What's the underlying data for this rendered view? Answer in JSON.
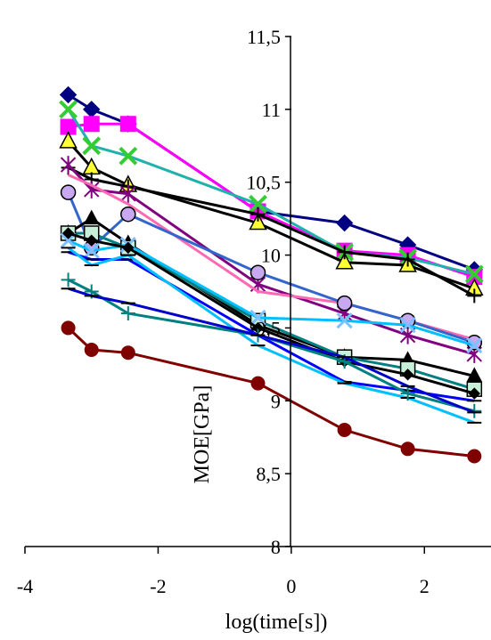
{
  "chart_data": {
    "type": "line",
    "title": "",
    "xlabel": "log(time[s])",
    "ylabel": "MOE[GPa]",
    "xlim": [
      -4,
      3
    ],
    "ylim": [
      8,
      11.5
    ],
    "x_ticks": [
      "-4",
      "-2",
      "0",
      "2"
    ],
    "x_tick_values": [
      -4,
      -2,
      0,
      2
    ],
    "y_ticks": [
      "8",
      "8,5",
      "9",
      "9,5",
      "10",
      "10,5",
      "11",
      "11,5"
    ],
    "y_tick_values": [
      8,
      8.5,
      9,
      9.5,
      10,
      10.5,
      11,
      11.5
    ],
    "grid": false,
    "legend": "none",
    "series": [
      {
        "color": "#000080",
        "marker": "diamond",
        "x": [
          -3.35,
          -3.0,
          -2.45,
          -0.5,
          0.8,
          1.75,
          2.75
        ],
        "y": [
          11.1,
          11.0,
          10.9,
          10.3,
          10.22,
          10.07,
          9.9
        ]
      },
      {
        "color": "#ff00ff",
        "marker": "square",
        "x": [
          -3.35,
          -3.0,
          -2.45,
          -0.5,
          0.8,
          1.75,
          2.75
        ],
        "y": [
          10.88,
          10.9,
          10.9,
          10.3,
          10.03,
          10.0,
          9.85
        ]
      },
      {
        "color": "#20b2aa",
        "marker": "x",
        "x": [
          -3.35,
          -3.0,
          -2.45,
          -0.5,
          0.8,
          1.75,
          2.75
        ],
        "y": [
          11.0,
          10.75,
          10.68,
          10.35,
          10.02,
          9.98,
          9.87
        ]
      },
      {
        "color": "#000000",
        "marker": "triangle-yellow",
        "x": [
          -3.35,
          -3.0,
          -2.45,
          -0.5,
          0.8,
          1.75,
          2.75
        ],
        "y": [
          10.78,
          10.6,
          10.48,
          10.22,
          9.95,
          9.93,
          9.77
        ]
      },
      {
        "color": "#000000",
        "marker": "plus",
        "x": [
          -3.35,
          -3.0,
          -2.45,
          -0.5,
          0.8,
          1.75,
          2.75
        ],
        "y": [
          10.6,
          10.52,
          10.47,
          10.28,
          10.02,
          9.97,
          9.72
        ]
      },
      {
        "color": "#800080",
        "marker": "star",
        "x": [
          -3.35,
          -3.0,
          -2.45,
          -0.5,
          0.8,
          1.75,
          2.75
        ],
        "y": [
          10.62,
          10.45,
          10.42,
          9.8,
          9.6,
          9.45,
          9.32
        ]
      },
      {
        "color": "#ff69b4",
        "marker": "none",
        "x": [
          -3.35,
          -3.0,
          -2.45,
          -0.5,
          0.8,
          1.75,
          2.75
        ],
        "y": [
          10.55,
          10.48,
          10.35,
          9.75,
          9.67,
          9.55,
          9.42
        ]
      },
      {
        "color": "#3366cc",
        "marker": "circle-lavender",
        "x": [
          -3.35,
          -3.0,
          -2.45,
          -0.5,
          0.8,
          1.75,
          2.75
        ],
        "y": [
          10.43,
          10.05,
          10.28,
          9.88,
          9.67,
          9.55,
          9.4
        ]
      },
      {
        "color": "#000000",
        "marker": "triangle-black",
        "x": [
          -3.35,
          -3.0,
          -2.45,
          -0.5,
          0.8,
          1.75,
          2.75
        ],
        "y": [
          10.15,
          10.25,
          10.08,
          9.52,
          9.3,
          9.28,
          9.17
        ]
      },
      {
        "color": "#008080",
        "marker": "square-green",
        "x": [
          -3.35,
          -3.0,
          -2.45,
          -0.5,
          0.8,
          1.75,
          2.75
        ],
        "y": [
          10.15,
          10.15,
          10.05,
          9.55,
          9.3,
          9.22,
          9.08
        ]
      },
      {
        "color": "#00bfff",
        "marker": "x-blue",
        "x": [
          -3.35,
          -3.0,
          -2.45,
          -0.5,
          0.8,
          1.75,
          2.75
        ],
        "y": [
          10.1,
          10.03,
          10.07,
          9.57,
          9.55,
          9.52,
          9.38
        ]
      },
      {
        "color": "#000000",
        "marker": "diamond-small",
        "x": [
          -3.35,
          -3.0,
          -2.45,
          -0.5,
          0.8,
          1.75,
          2.75
        ],
        "y": [
          10.15,
          10.1,
          10.05,
          9.5,
          9.27,
          9.18,
          9.05
        ]
      },
      {
        "color": "#0000ff",
        "marker": "dash",
        "x": [
          -3.35,
          -3.0,
          -2.45,
          -0.5,
          0.8,
          1.75,
          2.75
        ],
        "y": [
          10.02,
          9.97,
          9.97,
          9.45,
          9.13,
          9.07,
          9.0
        ]
      },
      {
        "color": "#00bfff",
        "marker": "dash",
        "x": [
          -3.35,
          -3.0,
          -2.45,
          -0.5,
          0.8,
          1.75,
          2.75
        ],
        "y": [
          10.05,
          9.93,
          10.0,
          9.38,
          9.12,
          9.02,
          8.85
        ]
      },
      {
        "color": "#008080",
        "marker": "plus",
        "x": [
          -3.35,
          -3.0,
          -2.45,
          -0.5,
          0.8,
          1.75,
          2.75
        ],
        "y": [
          9.83,
          9.75,
          9.6,
          9.45,
          9.27,
          9.05,
          8.93
        ]
      },
      {
        "color": "#0000cd",
        "marker": "dash",
        "x": [
          -3.35,
          -3.0,
          -2.45,
          -0.5,
          0.8,
          1.75,
          2.75
        ],
        "y": [
          9.77,
          9.72,
          9.67,
          9.45,
          9.3,
          9.1,
          8.92
        ]
      },
      {
        "color": "#800000",
        "marker": "circle",
        "x": [
          -3.35,
          -3.0,
          -2.45,
          -0.5,
          0.8,
          1.75,
          2.75
        ],
        "y": [
          9.5,
          9.35,
          9.33,
          9.12,
          8.8,
          8.67,
          8.62
        ]
      }
    ]
  }
}
